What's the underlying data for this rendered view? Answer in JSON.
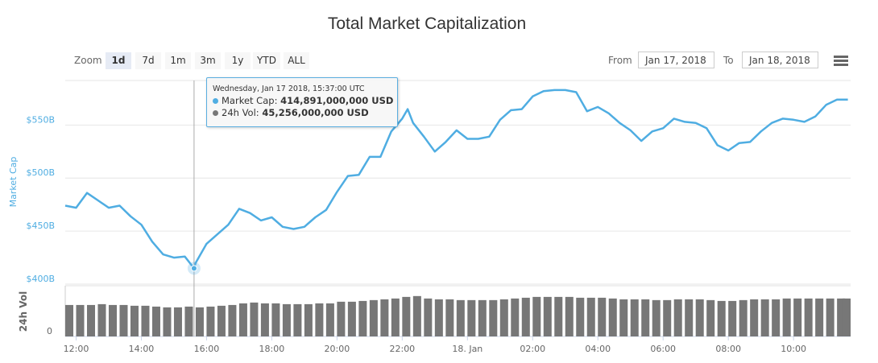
{
  "title": "Total Market Capitalization",
  "toolbar": {
    "zoom_label": "Zoom",
    "zoom_buttons": [
      "1d",
      "7d",
      "1m",
      "3m",
      "1y",
      "YTD",
      "ALL"
    ],
    "selected": "1d",
    "from_label": "From",
    "from_value": "Jan 17, 2018",
    "to_label": "To",
    "to_value": "Jan 18, 2018",
    "menu_icon": "hamburger-menu-icon"
  },
  "tooltip": {
    "header": "Wednesday, Jan 17 2018, 15:37:00 UTC",
    "cap_label": "Market Cap:",
    "cap_value": "414,891,000,000 USD",
    "vol_label": "24h Vol:",
    "vol_value": "45,256,000,000 USD",
    "time": "01-17 15:37"
  },
  "chart_data": {
    "type": "line",
    "title": "Total Market Capitalization",
    "colors": {
      "market_cap": "#4fade2",
      "volume": "#777777"
    },
    "x_ticks": [
      "12:00",
      "14:00",
      "16:00",
      "18:00",
      "20:00",
      "22:00",
      "18. Jan",
      "02:00",
      "04:00",
      "06:00",
      "08:00",
      "10:00"
    ],
    "x_tick_times": [
      "01-17 12:00",
      "01-17 14:00",
      "01-17 16:00",
      "01-17 18:00",
      "01-17 20:00",
      "01-17 22:00",
      "01-18 00:00",
      "01-18 02:00",
      "01-18 04:00",
      "01-18 06:00",
      "01-18 08:00",
      "01-18 10:00"
    ],
    "x_range": [
      "01-17 11:40",
      "01-18 11:45"
    ],
    "market_cap": {
      "ylabel": "Market Cap",
      "y_ticks": [
        "$400B",
        "$450B",
        "$500B",
        "$550B"
      ],
      "y_tick_values": [
        400,
        450,
        500,
        550
      ],
      "ylim": [
        400,
        592
      ],
      "unit": "billion USD",
      "points": [
        [
          "01-17 11:40",
          474
        ],
        [
          "01-17 12:00",
          472
        ],
        [
          "01-17 12:20",
          486
        ],
        [
          "01-17 12:40",
          479
        ],
        [
          "01-17 13:00",
          472
        ],
        [
          "01-17 13:20",
          474
        ],
        [
          "01-17 13:40",
          464
        ],
        [
          "01-17 14:00",
          456
        ],
        [
          "01-17 14:20",
          440
        ],
        [
          "01-17 14:40",
          428
        ],
        [
          "01-17 15:00",
          425
        ],
        [
          "01-17 15:20",
          426
        ],
        [
          "01-17 15:37",
          414.891
        ],
        [
          "01-17 15:40",
          420
        ],
        [
          "01-17 16:00",
          438
        ],
        [
          "01-17 16:20",
          447
        ],
        [
          "01-17 16:40",
          456
        ],
        [
          "01-17 17:00",
          471
        ],
        [
          "01-17 17:20",
          467
        ],
        [
          "01-17 17:40",
          460
        ],
        [
          "01-17 18:00",
          463
        ],
        [
          "01-17 18:20",
          454
        ],
        [
          "01-17 18:40",
          452
        ],
        [
          "01-17 19:00",
          454
        ],
        [
          "01-17 19:20",
          463
        ],
        [
          "01-17 19:40",
          470
        ],
        [
          "01-17 20:00",
          487
        ],
        [
          "01-17 20:20",
          502
        ],
        [
          "01-17 20:40",
          503
        ],
        [
          "01-17 21:00",
          520
        ],
        [
          "01-17 21:20",
          520
        ],
        [
          "01-17 21:40",
          544
        ],
        [
          "01-17 22:00",
          556
        ],
        [
          "01-17 22:10",
          565
        ],
        [
          "01-17 22:20",
          552
        ],
        [
          "01-17 22:40",
          539
        ],
        [
          "01-17 23:00",
          525
        ],
        [
          "01-17 23:20",
          534
        ],
        [
          "01-17 23:40",
          545
        ],
        [
          "01-18 00:00",
          537
        ],
        [
          "01-18 00:20",
          537
        ],
        [
          "01-18 00:40",
          539
        ],
        [
          "01-18 01:00",
          555
        ],
        [
          "01-18 01:20",
          564
        ],
        [
          "01-18 01:40",
          565
        ],
        [
          "01-18 02:00",
          577
        ],
        [
          "01-18 02:20",
          582
        ],
        [
          "01-18 02:40",
          583
        ],
        [
          "01-18 03:00",
          583
        ],
        [
          "01-18 03:20",
          581
        ],
        [
          "01-18 03:40",
          563
        ],
        [
          "01-18 04:00",
          567
        ],
        [
          "01-18 04:20",
          561
        ],
        [
          "01-18 04:40",
          552
        ],
        [
          "01-18 05:00",
          545
        ],
        [
          "01-18 05:20",
          535
        ],
        [
          "01-18 05:40",
          544
        ],
        [
          "01-18 06:00",
          547
        ],
        [
          "01-18 06:20",
          556
        ],
        [
          "01-18 06:40",
          553
        ],
        [
          "01-18 07:00",
          552
        ],
        [
          "01-18 07:20",
          547
        ],
        [
          "01-18 07:40",
          531
        ],
        [
          "01-18 08:00",
          526
        ],
        [
          "01-18 08:20",
          533
        ],
        [
          "01-18 08:40",
          534
        ],
        [
          "01-18 09:00",
          544
        ],
        [
          "01-18 09:20",
          552
        ],
        [
          "01-18 09:40",
          556
        ],
        [
          "01-18 10:00",
          555
        ],
        [
          "01-18 10:20",
          553
        ],
        [
          "01-18 10:40",
          558
        ],
        [
          "01-18 11:00",
          569
        ],
        [
          "01-18 11:20",
          574
        ],
        [
          "01-18 11:40",
          574
        ]
      ]
    },
    "volume": {
      "ylabel": "24h Vol",
      "y_ticks": [
        "0"
      ],
      "ylim": [
        0,
        79
      ],
      "unit": "billion USD",
      "points": [
        [
          "01-17 11:40",
          49.0
        ],
        [
          "01-17 12:00",
          49.0
        ],
        [
          "01-17 12:20",
          49.0
        ],
        [
          "01-17 12:40",
          50.3
        ],
        [
          "01-17 13:00",
          49.0
        ],
        [
          "01-17 13:20",
          49.0
        ],
        [
          "01-17 13:40",
          47.8
        ],
        [
          "01-17 14:00",
          47.8
        ],
        [
          "01-17 14:20",
          46.5
        ],
        [
          "01-17 14:40",
          45.3
        ],
        [
          "01-17 15:00",
          45.3
        ],
        [
          "01-17 15:20",
          46.5
        ],
        [
          "01-17 15:40",
          45.3
        ],
        [
          "01-17 16:00",
          46.5
        ],
        [
          "01-17 16:20",
          47.8
        ],
        [
          "01-17 16:40",
          49.0
        ],
        [
          "01-17 17:00",
          51.5
        ],
        [
          "01-17 17:20",
          52.8
        ],
        [
          "01-17 17:40",
          51.5
        ],
        [
          "01-17 18:00",
          51.5
        ],
        [
          "01-17 18:20",
          50.3
        ],
        [
          "01-17 18:40",
          50.3
        ],
        [
          "01-17 19:00",
          50.3
        ],
        [
          "01-17 19:20",
          51.5
        ],
        [
          "01-17 19:40",
          51.5
        ],
        [
          "01-17 20:00",
          54.1
        ],
        [
          "01-17 20:20",
          54.1
        ],
        [
          "01-17 20:40",
          55.3
        ],
        [
          "01-17 21:00",
          56.6
        ],
        [
          "01-17 21:20",
          57.8
        ],
        [
          "01-17 21:40",
          59.1
        ],
        [
          "01-17 22:00",
          61.6
        ],
        [
          "01-17 22:20",
          62.9
        ],
        [
          "01-17 22:40",
          59.1
        ],
        [
          "01-17 23:00",
          57.8
        ],
        [
          "01-17 23:20",
          57.8
        ],
        [
          "01-17 23:40",
          56.6
        ],
        [
          "01-18 00:00",
          56.6
        ],
        [
          "01-18 00:20",
          56.6
        ],
        [
          "01-18 00:40",
          56.6
        ],
        [
          "01-18 01:00",
          57.8
        ],
        [
          "01-18 01:20",
          59.1
        ],
        [
          "01-18 01:40",
          60.3
        ],
        [
          "01-18 02:00",
          61.6
        ],
        [
          "01-18 02:20",
          61.6
        ],
        [
          "01-18 02:40",
          61.6
        ],
        [
          "01-18 03:00",
          61.6
        ],
        [
          "01-18 03:20",
          60.3
        ],
        [
          "01-18 03:40",
          60.3
        ],
        [
          "01-18 04:00",
          60.3
        ],
        [
          "01-18 04:20",
          59.1
        ],
        [
          "01-18 04:40",
          57.8
        ],
        [
          "01-18 05:00",
          57.8
        ],
        [
          "01-18 05:20",
          57.8
        ],
        [
          "01-18 05:40",
          56.6
        ],
        [
          "01-18 06:00",
          56.6
        ],
        [
          "01-18 06:20",
          57.8
        ],
        [
          "01-18 06:40",
          57.8
        ],
        [
          "01-18 07:00",
          57.8
        ],
        [
          "01-18 07:20",
          56.6
        ],
        [
          "01-18 07:40",
          55.3
        ],
        [
          "01-18 08:00",
          55.3
        ],
        [
          "01-18 08:20",
          56.6
        ],
        [
          "01-18 08:40",
          57.8
        ],
        [
          "01-18 09:00",
          57.8
        ],
        [
          "01-18 09:20",
          57.8
        ],
        [
          "01-18 09:40",
          59.1
        ],
        [
          "01-18 10:00",
          59.1
        ],
        [
          "01-18 10:20",
          59.1
        ],
        [
          "01-18 10:40",
          59.1
        ],
        [
          "01-18 11:00",
          59.1
        ],
        [
          "01-18 11:20",
          59.1
        ],
        [
          "01-18 11:40",
          59.1
        ]
      ]
    },
    "grid": true,
    "legend": "none"
  }
}
